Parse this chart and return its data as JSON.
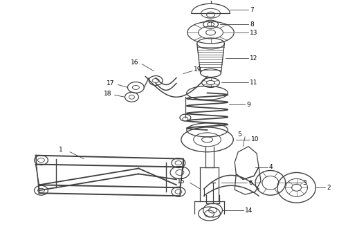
{
  "background_color": "#ffffff",
  "line_color": "#404040",
  "label_color": "#000000",
  "figsize": [
    4.9,
    3.6
  ],
  "dpi": 100,
  "font_size": 6.5,
  "line_width": 0.9
}
